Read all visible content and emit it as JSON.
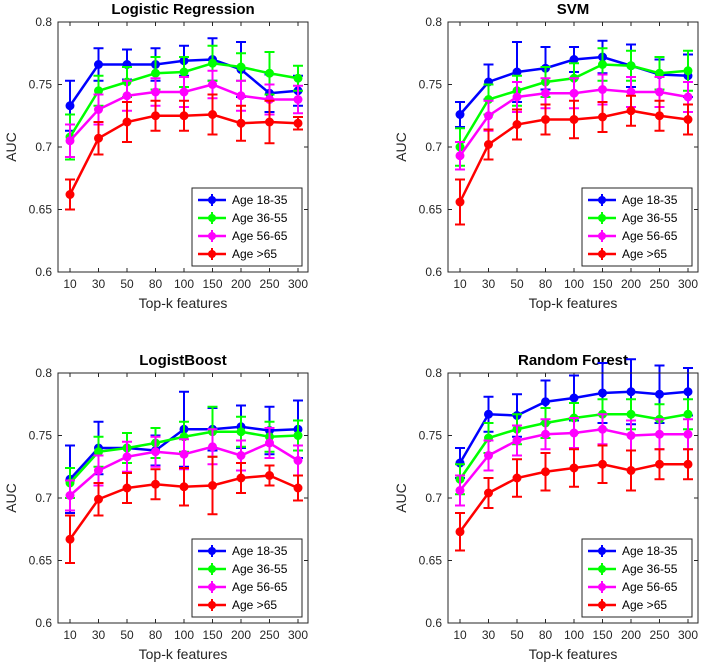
{
  "chart_data": [
    {
      "type": "line",
      "title": "Logistic Regression",
      "xlabel": "Top-k features",
      "ylabel": "AUC",
      "categories": [
        "10",
        "30",
        "50",
        "80",
        "100",
        "150",
        "200",
        "250",
        "300"
      ],
      "ylim": [
        0.6,
        0.8
      ],
      "yticks": [
        "0.6",
        "0.65",
        "0.7",
        "0.75",
        "0.8"
      ],
      "legend_position": "bottom-right",
      "series": [
        {
          "name": "Age 18-35",
          "color": "#0000ff",
          "values": [
            0.733,
            0.766,
            0.766,
            0.766,
            0.769,
            0.77,
            0.762,
            0.743,
            0.745
          ],
          "errors": [
            0.02,
            0.013,
            0.012,
            0.013,
            0.012,
            0.017,
            0.022,
            0.015,
            0.012
          ]
        },
        {
          "name": "Age 36-55",
          "color": "#00ff00",
          "values": [
            0.708,
            0.745,
            0.752,
            0.759,
            0.76,
            0.767,
            0.764,
            0.759,
            0.755
          ],
          "errors": [
            0.018,
            0.012,
            0.012,
            0.013,
            0.012,
            0.014,
            0.011,
            0.017,
            0.01
          ]
        },
        {
          "name": "Age 56-65",
          "color": "#ff00ff",
          "values": [
            0.705,
            0.73,
            0.741,
            0.744,
            0.744,
            0.75,
            0.741,
            0.738,
            0.738
          ],
          "errors": [
            0.013,
            0.012,
            0.012,
            0.011,
            0.012,
            0.011,
            0.012,
            0.012,
            0.011
          ]
        },
        {
          "name": "Age >65",
          "color": "#ff0000",
          "values": [
            0.662,
            0.707,
            0.72,
            0.725,
            0.725,
            0.726,
            0.719,
            0.72,
            0.719
          ],
          "errors": [
            0.012,
            0.013,
            0.016,
            0.012,
            0.012,
            0.016,
            0.014,
            0.017,
            0.005
          ]
        }
      ]
    },
    {
      "type": "line",
      "title": "SVM",
      "xlabel": "Top-k features",
      "ylabel": "AUC",
      "categories": [
        "10",
        "30",
        "50",
        "80",
        "100",
        "150",
        "200",
        "250",
        "300"
      ],
      "ylim": [
        0.6,
        0.8
      ],
      "yticks": [
        "0.6",
        "0.65",
        "0.7",
        "0.75",
        "0.8"
      ],
      "legend_position": "bottom-right",
      "series": [
        {
          "name": "Age 18-35",
          "color": "#0000ff",
          "values": [
            0.726,
            0.752,
            0.76,
            0.763,
            0.77,
            0.772,
            0.765,
            0.758,
            0.757
          ],
          "errors": [
            0.01,
            0.014,
            0.024,
            0.017,
            0.01,
            0.013,
            0.017,
            0.012,
            0.017
          ]
        },
        {
          "name": "Age 36-55",
          "color": "#00ff00",
          "values": [
            0.7,
            0.738,
            0.745,
            0.752,
            0.755,
            0.766,
            0.765,
            0.759,
            0.761
          ],
          "errors": [
            0.015,
            0.012,
            0.012,
            0.012,
            0.012,
            0.013,
            0.012,
            0.013,
            0.016
          ]
        },
        {
          "name": "Age 56-65",
          "color": "#ff00ff",
          "values": [
            0.693,
            0.725,
            0.74,
            0.743,
            0.743,
            0.746,
            0.744,
            0.744,
            0.74
          ],
          "errors": [
            0.011,
            0.012,
            0.012,
            0.012,
            0.012,
            0.012,
            0.012,
            0.012,
            0.012
          ]
        },
        {
          "name": "Age >65",
          "color": "#ff0000",
          "values": [
            0.656,
            0.702,
            0.718,
            0.722,
            0.722,
            0.724,
            0.729,
            0.725,
            0.722
          ],
          "errors": [
            0.018,
            0.012,
            0.012,
            0.012,
            0.015,
            0.012,
            0.012,
            0.012,
            0.012
          ]
        }
      ]
    },
    {
      "type": "line",
      "title": "LogistBoost",
      "xlabel": "Top-k features",
      "ylabel": "AUC",
      "categories": [
        "10",
        "30",
        "50",
        "80",
        "100",
        "150",
        "200",
        "250",
        "300"
      ],
      "ylim": [
        0.6,
        0.8
      ],
      "yticks": [
        "0.6",
        "0.65",
        "0.7",
        "0.75",
        "0.8"
      ],
      "legend_position": "bottom-right",
      "series": [
        {
          "name": "Age 18-35",
          "color": "#0000ff",
          "values": [
            0.715,
            0.74,
            0.74,
            0.738,
            0.755,
            0.755,
            0.757,
            0.754,
            0.755
          ],
          "errors": [
            0.027,
            0.021,
            0.012,
            0.012,
            0.03,
            0.017,
            0.017,
            0.019,
            0.023
          ]
        },
        {
          "name": "Age 36-55",
          "color": "#00ff00",
          "values": [
            0.712,
            0.737,
            0.74,
            0.744,
            0.749,
            0.753,
            0.753,
            0.749,
            0.75
          ],
          "errors": [
            0.012,
            0.012,
            0.012,
            0.012,
            0.012,
            0.02,
            0.012,
            0.012,
            0.012
          ]
        },
        {
          "name": "Age 56-65",
          "color": "#ff00ff",
          "values": [
            0.702,
            0.722,
            0.733,
            0.737,
            0.735,
            0.741,
            0.734,
            0.744,
            0.73
          ],
          "errors": [
            0.012,
            0.012,
            0.012,
            0.012,
            0.012,
            0.014,
            0.012,
            0.012,
            0.012
          ]
        },
        {
          "name": "Age >65",
          "color": "#ff0000",
          "values": [
            0.667,
            0.699,
            0.708,
            0.711,
            0.709,
            0.71,
            0.716,
            0.718,
            0.708
          ],
          "errors": [
            0.019,
            0.013,
            0.012,
            0.012,
            0.015,
            0.023,
            0.012,
            0.008,
            0.01
          ]
        }
      ]
    },
    {
      "type": "line",
      "title": "Random Forest",
      "xlabel": "Top-k features",
      "ylabel": "AUC",
      "categories": [
        "10",
        "30",
        "50",
        "80",
        "100",
        "150",
        "200",
        "250",
        "300"
      ],
      "ylim": [
        0.6,
        0.8
      ],
      "yticks": [
        "0.6",
        "0.65",
        "0.7",
        "0.75",
        "0.8"
      ],
      "legend_position": "bottom-right",
      "series": [
        {
          "name": "Age 18-35",
          "color": "#0000ff",
          "values": [
            0.728,
            0.767,
            0.766,
            0.777,
            0.78,
            0.784,
            0.785,
            0.783,
            0.785
          ],
          "errors": [
            0.012,
            0.014,
            0.017,
            0.017,
            0.018,
            0.024,
            0.026,
            0.023,
            0.019
          ]
        },
        {
          "name": "Age 36-55",
          "color": "#00ff00",
          "values": [
            0.715,
            0.748,
            0.755,
            0.76,
            0.764,
            0.767,
            0.767,
            0.763,
            0.767
          ],
          "errors": [
            0.012,
            0.012,
            0.012,
            0.012,
            0.012,
            0.012,
            0.012,
            0.012,
            0.012
          ]
        },
        {
          "name": "Age 56-65",
          "color": "#ff00ff",
          "values": [
            0.706,
            0.734,
            0.746,
            0.751,
            0.752,
            0.755,
            0.75,
            0.751,
            0.751
          ],
          "errors": [
            0.012,
            0.012,
            0.012,
            0.012,
            0.012,
            0.012,
            0.012,
            0.012,
            0.012
          ]
        },
        {
          "name": "Age >65",
          "color": "#ff0000",
          "values": [
            0.673,
            0.704,
            0.716,
            0.721,
            0.724,
            0.727,
            0.722,
            0.727,
            0.727
          ],
          "errors": [
            0.015,
            0.012,
            0.015,
            0.015,
            0.015,
            0.015,
            0.016,
            0.012,
            0.012
          ]
        }
      ]
    }
  ]
}
